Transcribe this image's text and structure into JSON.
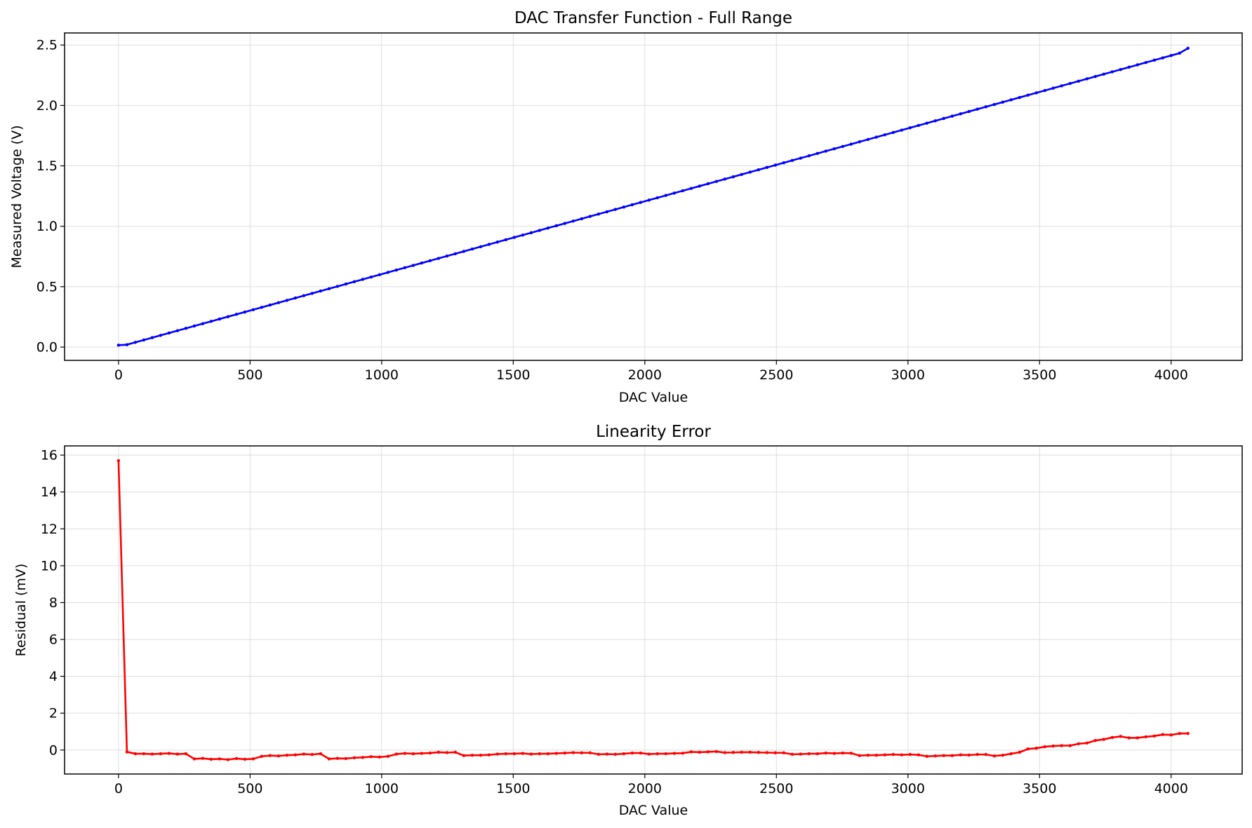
{
  "figure": {
    "background": "#ffffff",
    "grid_color": "#dddddd"
  },
  "chart_data": [
    {
      "type": "line",
      "title": "DAC Transfer Function - Full Range",
      "xlabel": "DAC Value",
      "ylabel": "Measured Voltage (V)",
      "xlim": [
        -205,
        4270
      ],
      "ylim": [
        -0.11,
        2.6
      ],
      "xticks": [
        0,
        500,
        1000,
        1500,
        2000,
        2500,
        3000,
        3500,
        4000
      ],
      "yticks": [
        0.0,
        0.5,
        1.0,
        1.5,
        2.0,
        2.5
      ],
      "ytick_labels": [
        "0.0",
        "0.5",
        "1.0",
        "1.5",
        "2.0",
        "2.5"
      ],
      "grid": true,
      "markers": true,
      "series": [
        {
          "color": "#0000ff",
          "x_start": 0,
          "x_step": 32,
          "count": 128,
          "y": [
            0.0157,
            0.0197,
            0.0392,
            0.0586,
            0.0779,
            0.0972,
            0.1165,
            0.1358,
            0.1551,
            0.1744,
            0.1937,
            0.213,
            0.2323,
            0.2516,
            0.2709,
            0.2902,
            0.3095,
            0.3288,
            0.3481,
            0.3674,
            0.3867,
            0.406,
            0.4253,
            0.4446,
            0.4639,
            0.4832,
            0.5025,
            0.5218,
            0.5411,
            0.5604,
            0.5797,
            0.599,
            0.6183,
            0.6376,
            0.6569,
            0.6762,
            0.6955,
            0.7148,
            0.7341,
            0.7534,
            0.7727,
            0.792,
            0.8113,
            0.8306,
            0.8499,
            0.8692,
            0.8885,
            0.9078,
            0.9271,
            0.9464,
            0.9657,
            0.985,
            1.0043,
            1.0236,
            1.0429,
            1.0622,
            1.0815,
            1.1008,
            1.1201,
            1.1394,
            1.1587,
            1.178,
            1.1973,
            1.2166,
            1.2359,
            1.2552,
            1.2745,
            1.2938,
            1.3131,
            1.3324,
            1.3517,
            1.371,
            1.3903,
            1.4096,
            1.4289,
            1.4482,
            1.4675,
            1.4868,
            1.5061,
            1.5254,
            1.5447,
            1.564,
            1.5833,
            1.6026,
            1.6219,
            1.6412,
            1.6605,
            1.6798,
            1.6991,
            1.7184,
            1.7377,
            1.757,
            1.7763,
            1.7956,
            1.8149,
            1.8342,
            1.8535,
            1.8728,
            1.8921,
            1.9114,
            1.9307,
            1.95,
            1.9693,
            1.9886,
            2.0079,
            2.0272,
            2.0465,
            2.0658,
            2.0851,
            2.1044,
            2.1237,
            2.143,
            2.1623,
            2.1816,
            2.2009,
            2.2202,
            2.2395,
            2.2588,
            2.2781,
            2.2974,
            2.3167,
            2.336,
            2.3553,
            2.3746,
            2.3939,
            2.4132,
            2.4325,
            2.4735
          ]
        }
      ]
    },
    {
      "type": "line",
      "title": "Linearity Error",
      "xlabel": "DAC Value",
      "ylabel": "Residual (mV)",
      "xlim": [
        -205,
        4270
      ],
      "ylim": [
        -1.3,
        16.5
      ],
      "xticks": [
        0,
        500,
        1000,
        1500,
        2000,
        2500,
        3000,
        3500,
        4000
      ],
      "yticks": [
        0,
        2,
        4,
        6,
        8,
        10,
        12,
        14,
        16
      ],
      "ytick_labels": [
        "0",
        "2",
        "4",
        "6",
        "8",
        "10",
        "12",
        "14",
        "16"
      ],
      "grid": true,
      "markers": true,
      "series": [
        {
          "color": "#ff0000",
          "x_start": 0,
          "x_step": 32,
          "count": 128,
          "y": [
            15.7,
            -0.1,
            -0.2,
            -0.2,
            -0.22,
            -0.2,
            -0.18,
            -0.22,
            -0.2,
            -0.48,
            -0.45,
            -0.5,
            -0.48,
            -0.52,
            -0.46,
            -0.5,
            -0.48,
            -0.34,
            -0.3,
            -0.32,
            -0.28,
            -0.26,
            -0.22,
            -0.24,
            -0.2,
            -0.48,
            -0.45,
            -0.46,
            -0.42,
            -0.4,
            -0.36,
            -0.38,
            -0.34,
            -0.22,
            -0.18,
            -0.2,
            -0.18,
            -0.16,
            -0.12,
            -0.14,
            -0.12,
            -0.3,
            -0.28,
            -0.28,
            -0.26,
            -0.22,
            -0.2,
            -0.2,
            -0.18,
            -0.22,
            -0.2,
            -0.2,
            -0.18,
            -0.16,
            -0.14,
            -0.15,
            -0.15,
            -0.23,
            -0.22,
            -0.23,
            -0.2,
            -0.16,
            -0.16,
            -0.22,
            -0.2,
            -0.2,
            -0.18,
            -0.17,
            -0.1,
            -0.12,
            -0.1,
            -0.08,
            -0.14,
            -0.13,
            -0.12,
            -0.12,
            -0.13,
            -0.14,
            -0.15,
            -0.15,
            -0.23,
            -0.22,
            -0.2,
            -0.2,
            -0.16,
            -0.18,
            -0.16,
            -0.17,
            -0.3,
            -0.28,
            -0.28,
            -0.26,
            -0.24,
            -0.26,
            -0.24,
            -0.26,
            -0.34,
            -0.32,
            -0.3,
            -0.3,
            -0.26,
            -0.27,
            -0.24,
            -0.24,
            -0.32,
            -0.28,
            -0.2,
            -0.12,
            0.06,
            0.1,
            0.18,
            0.22,
            0.24,
            0.24,
            0.34,
            0.38,
            0.52,
            0.58,
            0.68,
            0.74,
            0.66,
            0.66,
            0.72,
            0.76,
            0.84,
            0.82,
            0.9,
            0.9
          ]
        }
      ]
    }
  ]
}
